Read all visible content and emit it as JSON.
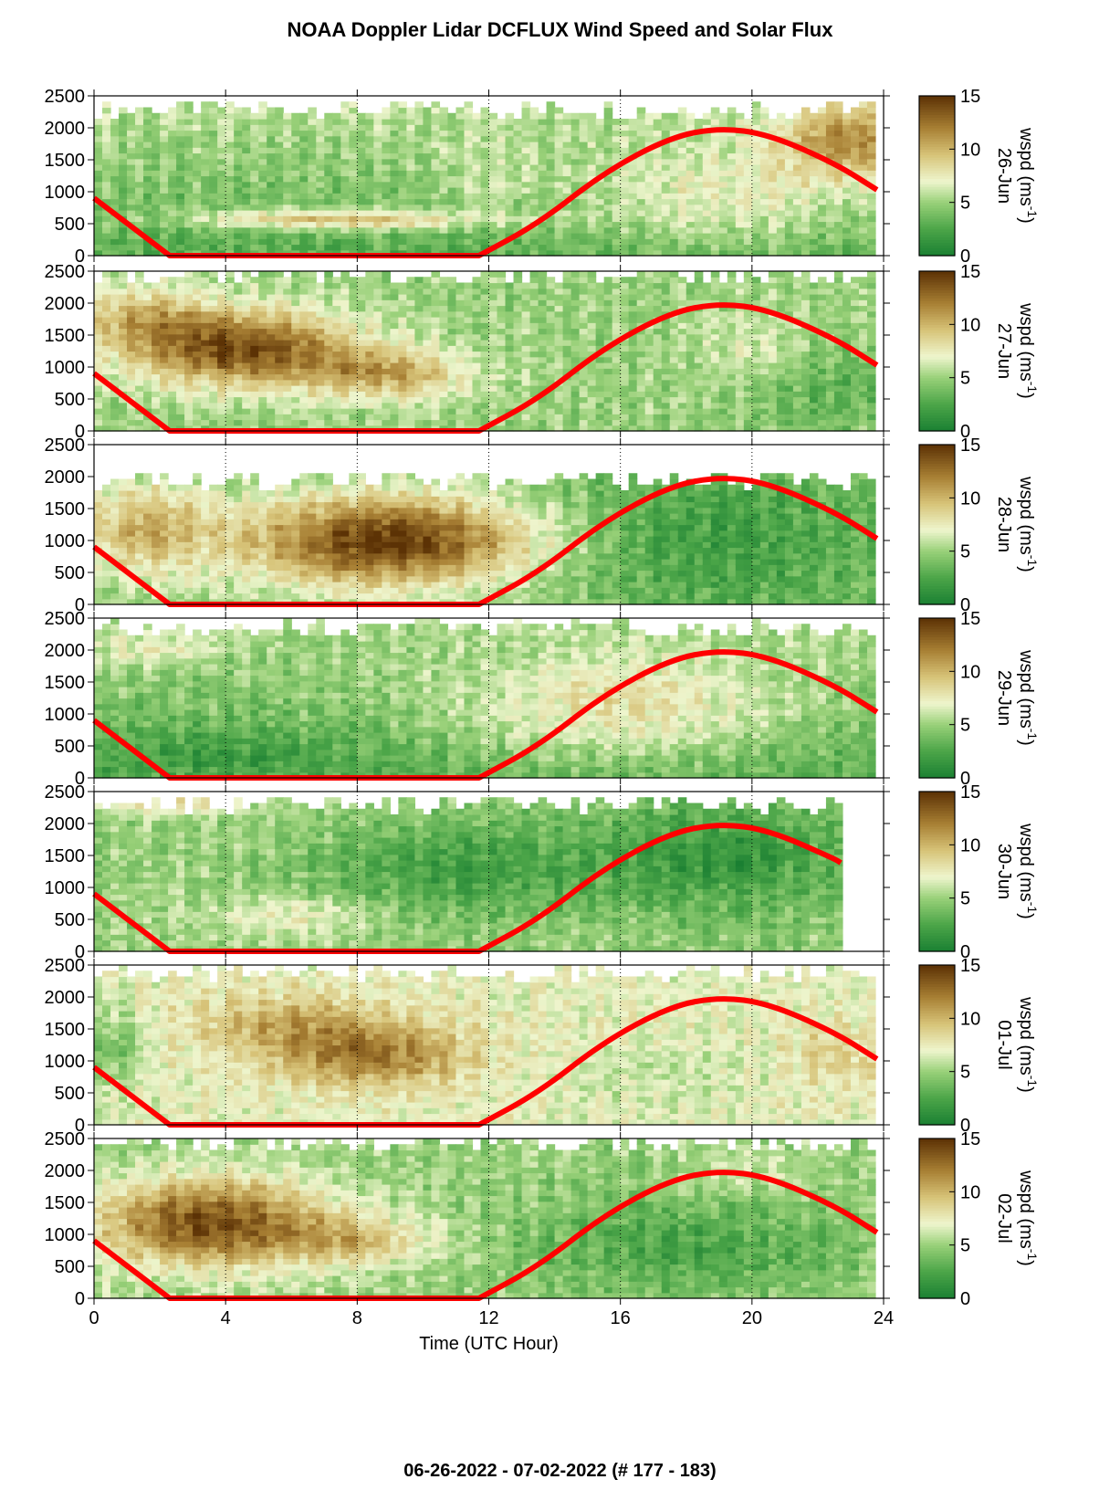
{
  "title": "NOAA Doppler Lidar DCFLUX Wind Speed and Solar Flux",
  "footer": "06-26-2022 - 07-02-2022   (# 177 - 183)",
  "colors": {
    "wspd_low": "#1a7f32",
    "wspd_mid": "#f4f9d8",
    "wspd_high": "#5c3205",
    "solar_flux_line": "#ff0000",
    "missing": "#ffffff"
  },
  "chart_data": {
    "type": "heatmap",
    "xlabel": "Time (UTC Hour)",
    "xlim": [
      0,
      24
    ],
    "x_ticks": [
      "0",
      "4",
      "8",
      "12",
      "16",
      "20",
      "24"
    ],
    "ylim": [
      0,
      2500
    ],
    "y_ticks": [
      "0",
      "500",
      "1000",
      "1500",
      "2000",
      "2500"
    ],
    "colorbar": {
      "label": "wspd (ms-1)",
      "range": [
        0,
        15
      ],
      "ticks": [
        "0",
        "5",
        "10",
        "15"
      ]
    },
    "solar_flux_curve": {
      "x": [
        0,
        2.3,
        11.7,
        13.5,
        15.5,
        17.5,
        19.0,
        20.5,
        22.5,
        23.8
      ],
      "y": [
        900,
        0,
        0,
        500,
        1300,
        1850,
        2000,
        1900,
        1450,
        1030
      ]
    },
    "panels": [
      {
        "date": "26-Jun",
        "profile": "jun26",
        "solar_end": 23.8,
        "data_end": 23.8,
        "top": 2300
      },
      {
        "date": "27-Jun",
        "profile": "jun27",
        "solar_end": 23.8,
        "data_end": 23.8,
        "top": 2450
      },
      {
        "date": "28-Jun",
        "profile": "jun28",
        "solar_end": 23.8,
        "data_end": 23.8,
        "top": 1950
      },
      {
        "date": "29-Jun",
        "profile": "jun29",
        "solar_end": 23.8,
        "data_end": 23.8,
        "top": 2350
      },
      {
        "date": "30-Jun",
        "profile": "jun30",
        "solar_end": 22.7,
        "data_end": 22.7,
        "top": 2300
      },
      {
        "date": "01-Jul",
        "profile": "jul01",
        "solar_end": 23.8,
        "data_end": 23.8,
        "top": 2400
      },
      {
        "date": "02-Jul",
        "profile": "jul02",
        "solar_end": 23.8,
        "data_end": 23.8,
        "top": 2450
      }
    ]
  }
}
